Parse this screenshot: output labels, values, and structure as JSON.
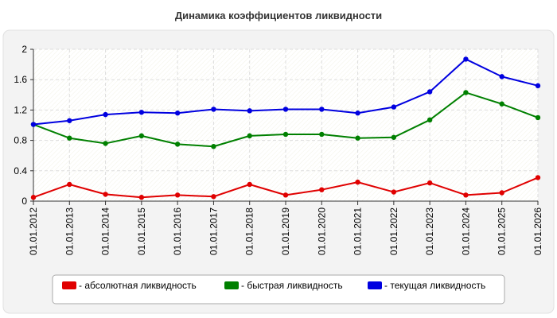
{
  "chart_data": {
    "type": "line",
    "title": "Динамика коэффициентов ликвидности",
    "xlabel": "",
    "ylabel": "",
    "ylim": [
      0,
      2
    ],
    "yticks": [
      "0",
      "0.4",
      "0.8",
      "1.2",
      "1.6",
      "2"
    ],
    "grid": true,
    "legend_position": "bottom",
    "categories": [
      "01.01.2012",
      "01.01.2013",
      "01.01.2014",
      "01.01.2015",
      "01.01.2016",
      "01.01.2017",
      "01.01.2018",
      "01.01.2019",
      "01.01.2020",
      "01.01.2021",
      "01.01.2022",
      "01.01.2023",
      "01.01.2024",
      "01.01.2025",
      "01.01.2026"
    ],
    "series": [
      {
        "name": "- абсолютная ликвидность",
        "color": "#e00000",
        "values": [
          0.05,
          0.22,
          0.09,
          0.05,
          0.08,
          0.06,
          0.22,
          0.08,
          0.15,
          0.25,
          0.12,
          0.24,
          0.08,
          0.11,
          0.31
        ]
      },
      {
        "name": "- быстрая ликвидность",
        "color": "#008000",
        "values": [
          1.01,
          0.83,
          0.76,
          0.86,
          0.75,
          0.72,
          0.86,
          0.88,
          0.88,
          0.83,
          0.84,
          1.07,
          1.43,
          1.28,
          1.1
        ]
      },
      {
        "name": "- текущая ликвидность",
        "color": "#0000e0",
        "values": [
          1.01,
          1.06,
          1.14,
          1.17,
          1.16,
          1.21,
          1.19,
          1.21,
          1.21,
          1.16,
          1.24,
          1.44,
          1.87,
          1.64,
          1.52
        ]
      }
    ]
  }
}
